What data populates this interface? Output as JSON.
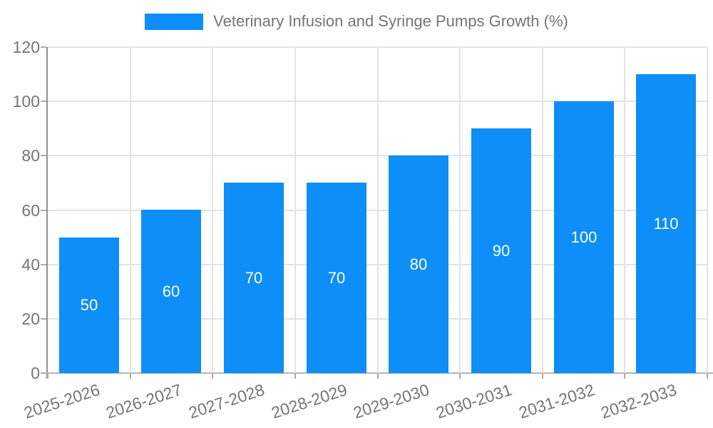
{
  "chart_data": {
    "type": "bar",
    "title": "Veterinary Infusion and Syringe Pumps Growth (%)",
    "categories": [
      "2025-2026",
      "2026-2027",
      "2027-2028",
      "2028-2029",
      "2029-2030",
      "2030-2031",
      "2031-2032",
      "2032-2033"
    ],
    "values": [
      50,
      60,
      70,
      70,
      80,
      90,
      100,
      110
    ],
    "xlabel": "",
    "ylabel": "",
    "ylim": [
      0,
      120
    ],
    "yticks": [
      0,
      20,
      40,
      60,
      80,
      100,
      120
    ],
    "grid": true,
    "legend_position": "top-center",
    "bar_color": "#0d8ef9",
    "bar_label_color": "#ffffff",
    "text_color": "#757575",
    "grid_color": "#e3e3e3"
  }
}
